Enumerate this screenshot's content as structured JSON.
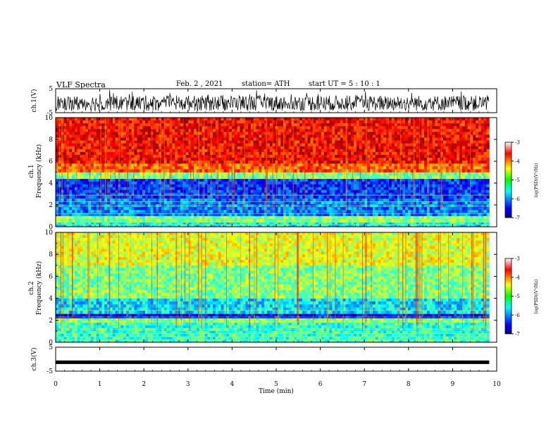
{
  "header": {
    "title": "VLF Spectra",
    "date": "Feb. 2 , 2021",
    "station": "station= ATH",
    "start": "start  UT =  5 : 10 : 1"
  },
  "chart_data": [
    {
      "type": "line",
      "panel": "ch1-waveform",
      "ylabel": "ch.1(V)",
      "yticks": [
        "5",
        "-5"
      ],
      "ylim": [
        -5,
        5
      ],
      "x_range_min": [
        0,
        9.83
      ],
      "description_values": "noisy waveform oscillating roughly between -4 and 3 V"
    },
    {
      "type": "heatmap",
      "panel": "ch1-spectrogram",
      "ylabel_line1": "ch.1",
      "ylabel_line2": "Frequency  (kHz)",
      "yticks": [
        "0",
        "2",
        "4",
        "6",
        "8",
        "10"
      ],
      "ylim_khz": [
        0,
        10
      ],
      "xlim_min": [
        0,
        9.83
      ],
      "log_psd_by_band": [
        {
          "from_khz": 0.0,
          "to_khz": 0.4,
          "log_psd": -5.5
        },
        {
          "from_khz": 0.4,
          "to_khz": 1.0,
          "log_psd": -5.0
        },
        {
          "from_khz": 1.0,
          "to_khz": 2.6,
          "log_psd": -6.0
        },
        {
          "from_khz": 2.6,
          "to_khz": 4.4,
          "log_psd": -6.3
        },
        {
          "from_khz": 4.4,
          "to_khz": 5.0,
          "log_psd": -5.0
        },
        {
          "from_khz": 5.0,
          "to_khz": 5.8,
          "log_psd": -3.9
        },
        {
          "from_khz": 5.8,
          "to_khz": 10.0,
          "log_psd": -3.5
        }
      ],
      "colorbar": {
        "label": "log(PSD)(V²/Hz)",
        "ticks": [
          "-3",
          "-4",
          "-5",
          "-6",
          "-7"
        ],
        "range": [
          -7,
          -3
        ]
      }
    },
    {
      "type": "heatmap",
      "panel": "ch2-spectrogram",
      "ylabel_line1": "ch.2",
      "ylabel_line2": "Frequency  (kHz)",
      "yticks": [
        "0",
        "2",
        "4",
        "6",
        "8",
        "10"
      ],
      "ylim_khz": [
        0,
        10
      ],
      "xlim_min": [
        0,
        9.83
      ],
      "log_psd_by_band": [
        {
          "from_khz": 0.0,
          "to_khz": 1.8,
          "log_psd": -5.3
        },
        {
          "from_khz": 1.8,
          "to_khz": 2.2,
          "log_psd": -5.0
        },
        {
          "from_khz": 2.2,
          "to_khz": 2.6,
          "log_psd": -6.5
        },
        {
          "from_khz": 2.6,
          "to_khz": 4.0,
          "log_psd": -5.6
        },
        {
          "from_khz": 4.0,
          "to_khz": 7.0,
          "log_psd": -5.0
        },
        {
          "from_khz": 7.0,
          "to_khz": 10.0,
          "log_psd": -4.6
        }
      ],
      "colorbar": {
        "label": "log(PSD)(V²/Hz)",
        "ticks": [
          "-3",
          "-4",
          "-5",
          "-6",
          "-7"
        ],
        "range": [
          -7,
          -3
        ]
      }
    },
    {
      "type": "line",
      "panel": "ch3-waveform",
      "ylabel": "ch.3(V)",
      "yticks": [
        "5",
        "-5"
      ],
      "ylim": [
        -5,
        5
      ],
      "x_range_min": [
        0,
        9.83
      ],
      "constant_value_v": -1.3
    }
  ],
  "xaxis": {
    "label": "Time  (min)",
    "ticks": [
      "0",
      "1",
      "2",
      "3",
      "4",
      "5",
      "6",
      "7",
      "8",
      "9",
      "10"
    ],
    "range": [
      0,
      10
    ]
  }
}
